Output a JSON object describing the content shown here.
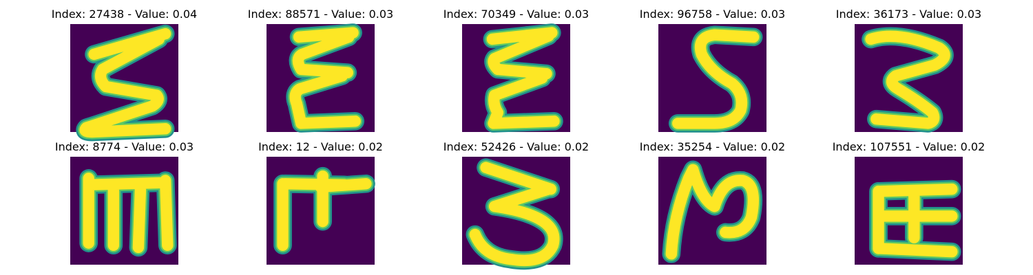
{
  "colors": {
    "background": "#440154",
    "stroke_outer": "#21918c",
    "stroke_mid": "#5ec962",
    "stroke_core": "#fde725"
  },
  "panels": [
    {
      "title": "Index: 27438 - Value: 0.04",
      "glyph": "sigma"
    },
    {
      "title": "Index: 88571 - Value: 0.03",
      "glyph": "epsilon-zigzag"
    },
    {
      "title": "Index: 70349 - Value: 0.03",
      "glyph": "epsilon-zigzag-2"
    },
    {
      "title": "Index: 96758 - Value: 0.03",
      "glyph": "s-shape"
    },
    {
      "title": "Index: 36173 - Value: 0.03",
      "glyph": "three-zigzag"
    },
    {
      "title": "Index: 8774 - Value: 0.03",
      "glyph": "m-comb"
    },
    {
      "title": "Index: 12 - Value: 0.02",
      "glyph": "f-cross"
    },
    {
      "title": "Index: 52426 - Value: 0.02",
      "glyph": "three-curve"
    },
    {
      "title": "Index: 35254 - Value: 0.02",
      "glyph": "n-hook"
    },
    {
      "title": "Index: 107551 - Value: 0.02",
      "glyph": "e-comb"
    }
  ]
}
